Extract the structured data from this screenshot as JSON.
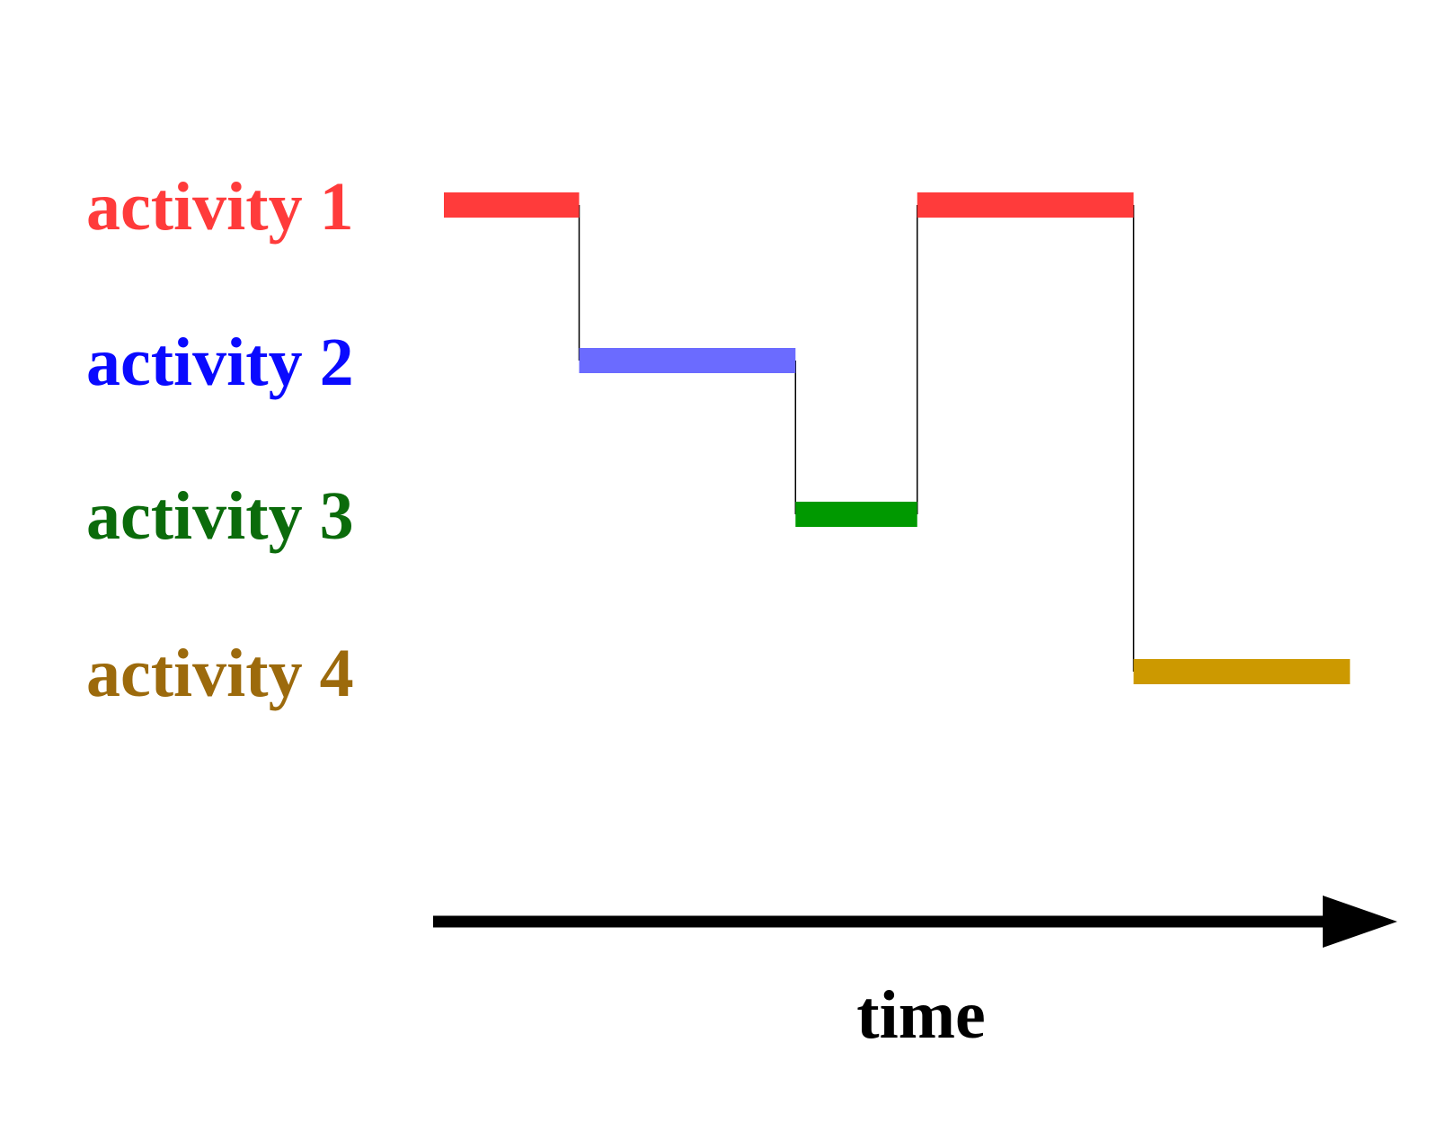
{
  "activities": [
    {
      "label": "activity 1",
      "text_color": "#ff3b3b",
      "bar_color": "#ff3b3b"
    },
    {
      "label": "activity 2",
      "text_color": "#0a0aff",
      "bar_color": "#6b6bff"
    },
    {
      "label": "activity 3",
      "text_color": "#0b6b0b",
      "bar_color": "#009900"
    },
    {
      "label": "activity 4",
      "text_color": "#9c6a0c",
      "bar_color": "#cc9900"
    }
  ],
  "segments": [
    {
      "activity": 0,
      "start": 0,
      "end": 1
    },
    {
      "activity": 1,
      "start": 1,
      "end": 2.6
    },
    {
      "activity": 2,
      "start": 2.6,
      "end": 3.5
    },
    {
      "activity": 0,
      "start": 3.5,
      "end": 5.1
    },
    {
      "activity": 3,
      "start": 5.1,
      "end": 6.7
    }
  ],
  "axis": {
    "label": "time",
    "color": "#000000",
    "connector_color": "#000000"
  }
}
